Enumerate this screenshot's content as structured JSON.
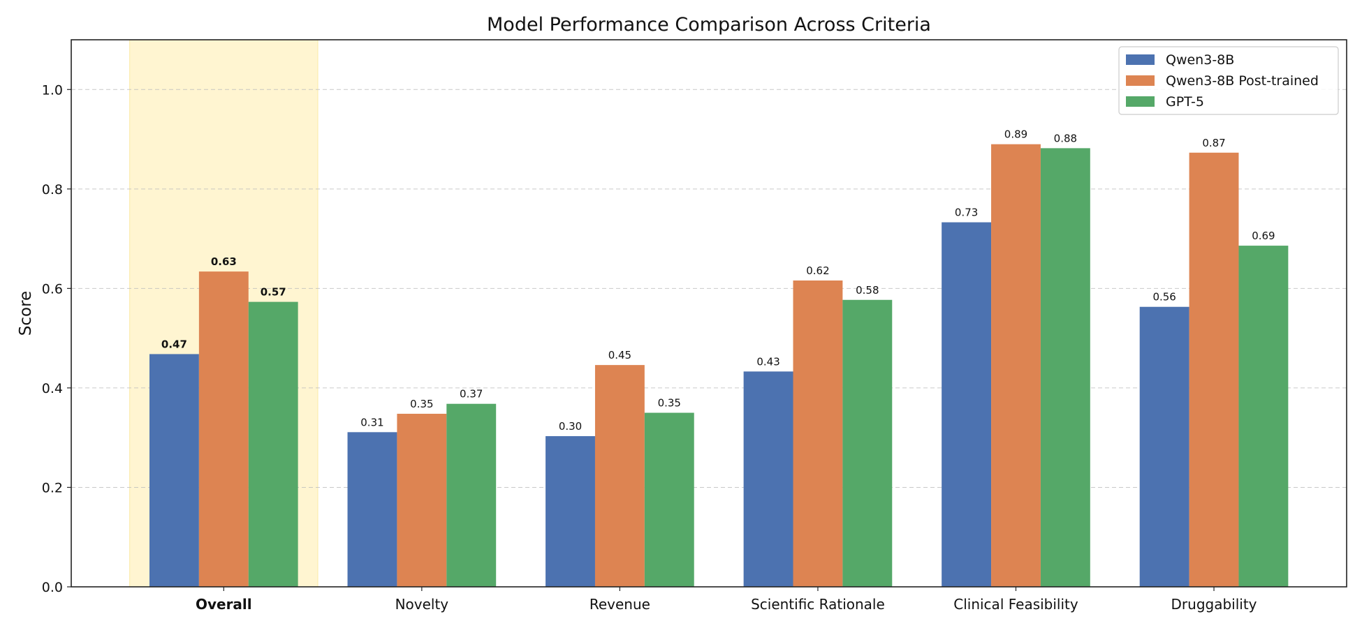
{
  "chart_data": {
    "type": "bar",
    "title": "Model Performance Comparison Across Criteria",
    "xlabel": "",
    "ylabel": "Score",
    "ylim": [
      0,
      1.1
    ],
    "yticks": [
      "0.0",
      "0.2",
      "0.4",
      "0.6",
      "0.8",
      "1.0"
    ],
    "grid": "horizontal dashed",
    "legend_position": "top-right",
    "categories": [
      "Overall",
      "Novelty",
      "Revenue",
      "Scientific Rationale",
      "Clinical Feasibility",
      "Druggability"
    ],
    "highlighted_category": "Overall",
    "highlight_color": "#fff5d1",
    "series": [
      {
        "name": "Qwen3-8B",
        "color": "#4c72b0",
        "values": [
          0.468,
          0.311,
          0.303,
          0.433,
          0.733,
          0.563
        ]
      },
      {
        "name": "Qwen3-8B Post-trained",
        "color": "#dd8452",
        "values": [
          0.634,
          0.348,
          0.446,
          0.616,
          0.89,
          0.873
        ]
      },
      {
        "name": "GPT-5",
        "color": "#55a868",
        "values": [
          0.573,
          0.368,
          0.35,
          0.577,
          0.882,
          0.686
        ]
      }
    ]
  }
}
